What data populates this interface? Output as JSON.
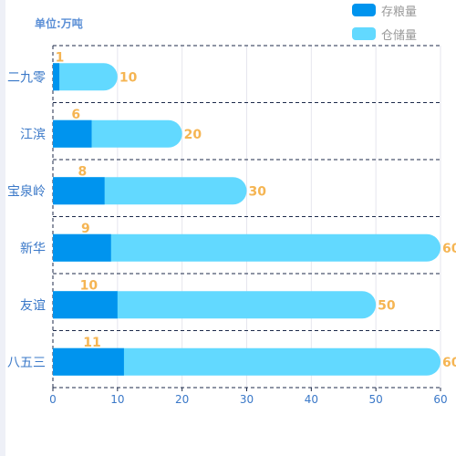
{
  "unit_label": "单位:万吨",
  "colors": {
    "stock": "#0094ee",
    "capacity": "#62d9ff",
    "value_label": "#f5b553",
    "category_label": "#3a78c8",
    "axis_tick": "#3a78c8",
    "grid": "#e6e6ee",
    "dashed": "#1c2a4a"
  },
  "chart_data": {
    "type": "bar",
    "orientation": "horizontal",
    "categories": [
      "二九零",
      "江滨",
      "宝泉岭",
      "新华",
      "友谊",
      "八五三"
    ],
    "series": [
      {
        "name": "存粮量",
        "values": [
          1,
          6,
          8,
          9,
          10,
          11
        ]
      },
      {
        "name": "仓储量",
        "values": [
          10,
          20,
          30,
          60,
          50,
          60
        ]
      }
    ],
    "xlim": [
      0,
      60
    ],
    "x_ticks": [
      0,
      10,
      20,
      30,
      40,
      50,
      60
    ],
    "grid": true,
    "legend_position": "top-right"
  }
}
